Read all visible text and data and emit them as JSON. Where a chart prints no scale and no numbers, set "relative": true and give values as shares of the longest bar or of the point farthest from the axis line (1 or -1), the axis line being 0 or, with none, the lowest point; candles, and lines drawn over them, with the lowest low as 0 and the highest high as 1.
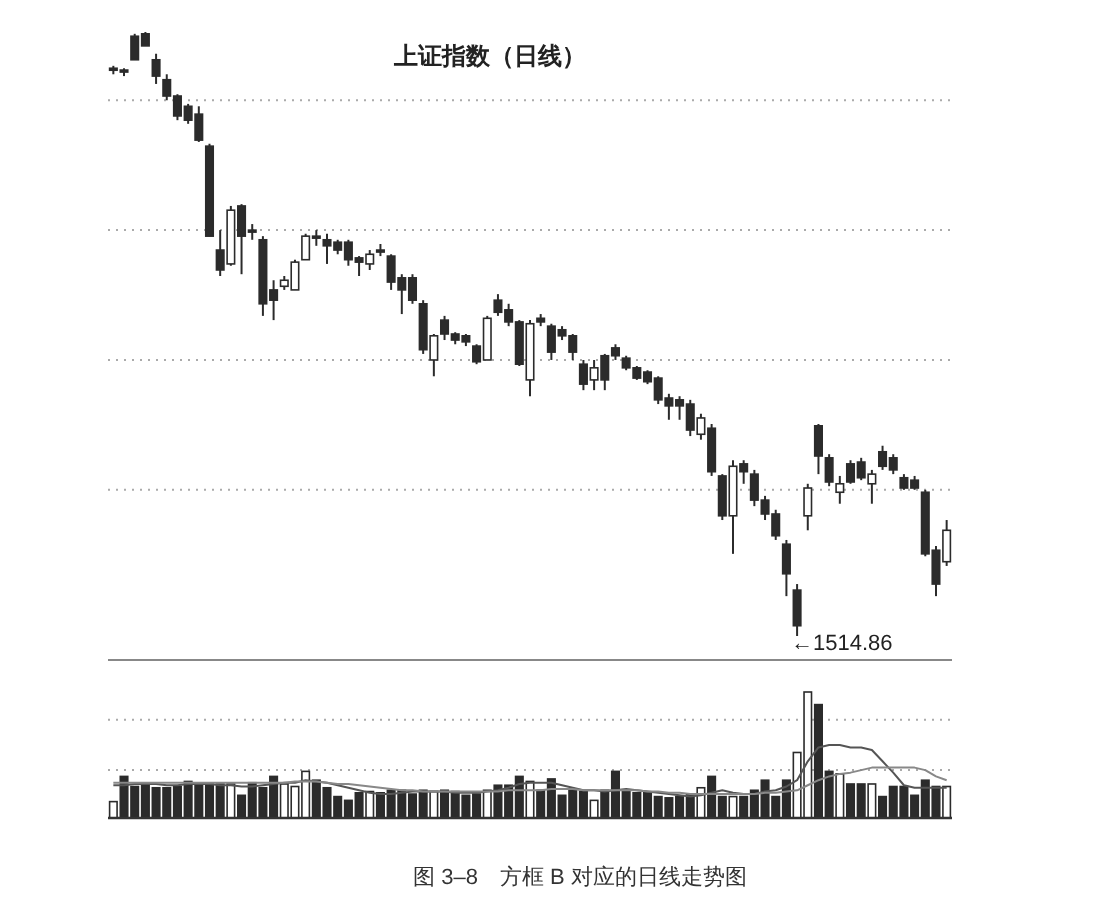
{
  "chart_data": [
    {
      "type": "candlestick",
      "title": "上证指数（日线）",
      "relative": true,
      "categories": [
        null,
        null,
        null,
        null,
        null,
        null,
        null,
        null,
        null,
        null,
        null,
        null,
        null,
        null,
        null,
        null,
        null,
        null,
        null,
        null,
        null,
        null,
        null,
        null,
        null,
        null,
        null,
        null,
        null,
        null,
        null,
        null,
        null,
        null,
        null,
        null,
        null,
        null,
        null,
        null,
        null,
        null,
        null,
        null,
        null,
        null,
        null,
        null,
        null,
        null,
        null,
        null,
        null,
        null,
        null,
        null,
        null,
        null,
        null,
        null,
        null,
        null,
        null,
        null,
        null,
        null,
        null,
        null,
        null,
        null,
        null,
        null,
        null,
        null,
        null,
        null,
        null,
        null,
        null
      ],
      "ohlc": [
        [
          0.94,
          0.944,
          0.93,
          0.937
        ],
        [
          0.937,
          0.94,
          0.927,
          0.934
        ],
        [
          0.993,
          0.997,
          0.954,
          0.954
        ],
        [
          0.997,
          1,
          0.977,
          0.977
        ],
        [
          0.954,
          0.964,
          0.914,
          0.927
        ],
        [
          0.921,
          0.93,
          0.887,
          0.894
        ],
        [
          0.894,
          0.897,
          0.854,
          0.861
        ],
        [
          0.877,
          0.881,
          0.848,
          0.854
        ],
        [
          0.864,
          0.877,
          0.818,
          0.821
        ],
        [
          0.811,
          0.815,
          0.662,
          0.662
        ],
        [
          0.639,
          0.672,
          0.596,
          0.606
        ],
        [
          0.616,
          0.712,
          0.613,
          0.705
        ],
        [
          0.712,
          0.715,
          0.599,
          0.662
        ],
        [
          0.672,
          0.682,
          0.656,
          0.669
        ],
        [
          0.656,
          0.662,
          0.53,
          0.55
        ],
        [
          0.573,
          0.589,
          0.523,
          0.556
        ],
        [
          0.579,
          0.596,
          0.573,
          0.589
        ],
        [
          0.573,
          0.623,
          0.573,
          0.619
        ],
        [
          0.623,
          0.666,
          0.623,
          0.662
        ],
        [
          0.662,
          0.672,
          0.646,
          0.659
        ],
        [
          0.656,
          0.666,
          0.616,
          0.646
        ],
        [
          0.652,
          0.656,
          0.632,
          0.639
        ],
        [
          0.652,
          0.656,
          0.613,
          0.623
        ],
        [
          0.626,
          0.629,
          0.596,
          0.619
        ],
        [
          0.616,
          0.639,
          0.606,
          0.632
        ],
        [
          0.639,
          0.649,
          0.629,
          0.636
        ],
        [
          0.629,
          0.632,
          0.573,
          0.586
        ],
        [
          0.593,
          0.599,
          0.533,
          0.573
        ],
        [
          0.593,
          0.599,
          0.55,
          0.556
        ],
        [
          0.55,
          0.556,
          0.467,
          0.474
        ],
        [
          0.457,
          0.5,
          0.43,
          0.497
        ],
        [
          0.523,
          0.53,
          0.49,
          0.5
        ],
        [
          0.5,
          0.503,
          0.483,
          0.49
        ],
        [
          0.497,
          0.5,
          0.48,
          0.487
        ],
        [
          0.48,
          0.483,
          0.45,
          0.454
        ],
        [
          0.457,
          0.53,
          0.457,
          0.526
        ],
        [
          0.556,
          0.566,
          0.53,
          0.536
        ],
        [
          0.54,
          0.55,
          0.513,
          0.52
        ],
        [
          0.52,
          0.523,
          0.447,
          0.45
        ],
        [
          0.424,
          0.523,
          0.397,
          0.517
        ],
        [
          0.526,
          0.533,
          0.513,
          0.52
        ],
        [
          0.513,
          0.517,
          0.457,
          0.47
        ],
        [
          0.507,
          0.513,
          0.49,
          0.497
        ],
        [
          0.497,
          0.5,
          0.457,
          0.47
        ],
        [
          0.45,
          0.457,
          0.407,
          0.417
        ],
        [
          0.424,
          0.457,
          0.407,
          0.444
        ],
        [
          0.464,
          0.467,
          0.407,
          0.424
        ],
        [
          0.477,
          0.483,
          0.457,
          0.464
        ],
        [
          0.46,
          0.464,
          0.44,
          0.444
        ],
        [
          0.444,
          0.447,
          0.424,
          0.427
        ],
        [
          0.437,
          0.44,
          0.417,
          0.421
        ],
        [
          0.427,
          0.43,
          0.384,
          0.391
        ],
        [
          0.394,
          0.401,
          0.358,
          0.381
        ],
        [
          0.391,
          0.397,
          0.358,
          0.381
        ],
        [
          0.384,
          0.391,
          0.331,
          0.341
        ],
        [
          0.334,
          0.368,
          0.325,
          0.361
        ],
        [
          0.344,
          0.351,
          0.265,
          0.272
        ],
        [
          0.265,
          0.268,
          0.192,
          0.199
        ],
        [
          0.199,
          0.291,
          0.136,
          0.281
        ],
        [
          0.285,
          0.291,
          0.252,
          0.272
        ],
        [
          0.268,
          0.275,
          0.215,
          0.225
        ],
        [
          0.225,
          0.232,
          0.192,
          0.202
        ],
        [
          0.202,
          0.209,
          0.159,
          0.166
        ],
        [
          0.152,
          0.159,
          0.066,
          0.103
        ],
        [
          0.076,
          0.086,
          0,
          0.017
        ],
        [
          0.199,
          0.252,
          0.175,
          0.245
        ],
        [
          0.348,
          0.351,
          0.268,
          0.298
        ],
        [
          0.295,
          0.301,
          0.248,
          0.255
        ],
        [
          0.238,
          0.265,
          0.219,
          0.252
        ],
        [
          0.285,
          0.291,
          0.252,
          0.255
        ],
        [
          0.288,
          0.295,
          0.258,
          0.262
        ],
        [
          0.252,
          0.275,
          0.219,
          0.268
        ],
        [
          0.305,
          0.315,
          0.275,
          0.281
        ],
        [
          0.295,
          0.301,
          0.268,
          0.275
        ],
        [
          0.262,
          0.268,
          0.242,
          0.245
        ],
        [
          0.258,
          0.265,
          0.242,
          0.245
        ],
        [
          0.238,
          0.242,
          0.132,
          0.136
        ],
        [
          0.142,
          0.149,
          0.066,
          0.086
        ],
        [
          0.123,
          0.192,
          0.116,
          0.175
        ]
      ],
      "ref_lines": [
        {
          "axis": "y",
          "value": 0.887,
          "line_style": "dotted",
          "color": "#aaaaaa"
        },
        {
          "axis": "y",
          "value": 0.672,
          "line_style": "dotted",
          "color": "#aaaaaa"
        },
        {
          "axis": "y",
          "value": 0.457,
          "line_style": "dotted",
          "color": "#aaaaaa"
        },
        {
          "axis": "y",
          "value": 0.242,
          "line_style": "dotted",
          "color": "#aaaaaa"
        }
      ],
      "annotations": [
        "←1514.86"
      ]
    },
    {
      "type": "bar",
      "relative": true,
      "categories": [
        null,
        null,
        null,
        null,
        null,
        null,
        null,
        null,
        null,
        null,
        null,
        null,
        null,
        null,
        null,
        null,
        null,
        null,
        null,
        null,
        null,
        null,
        null,
        null,
        null,
        null,
        null,
        null,
        null,
        null,
        null,
        null,
        null,
        null,
        null,
        null,
        null,
        null,
        null,
        null,
        null,
        null,
        null,
        null,
        null,
        null,
        null,
        null,
        null,
        null,
        null,
        null,
        null,
        null,
        null,
        null,
        null,
        null,
        null,
        null,
        null,
        null,
        null,
        null,
        null,
        null,
        null,
        null,
        null,
        null,
        null,
        null,
        null,
        null,
        null,
        null,
        null,
        null,
        null
      ],
      "series": [
        {
          "type": "bar",
          "values": [
            0.13,
            0.33,
            0.25,
            0.27,
            0.24,
            0.24,
            0.25,
            0.29,
            0.27,
            0.27,
            0.27,
            0.27,
            0.18,
            0.28,
            0.24,
            0.33,
            0.27,
            0.25,
            0.37,
            0.3,
            0.24,
            0.17,
            0.14,
            0.2,
            0.21,
            0.2,
            0.22,
            0.22,
            0.19,
            0.22,
            0.21,
            0.22,
            0.21,
            0.18,
            0.19,
            0.22,
            0.26,
            0.26,
            0.33,
            0.29,
            0.22,
            0.31,
            0.18,
            0.22,
            0.21,
            0.14,
            0.22,
            0.37,
            0.21,
            0.2,
            0.2,
            0.17,
            0.16,
            0.17,
            0.19,
            0.24,
            0.33,
            0.17,
            0.17,
            0.17,
            0.22,
            0.3,
            0.17,
            0.3,
            0.52,
            1.0,
            0.9,
            0.37,
            0.35,
            0.27,
            0.27,
            0.27,
            0.17,
            0.25,
            0.25,
            0.18,
            0.3,
            0.25,
            0.25
          ],
          "colors": [
            "#ffffff",
            "#2b2b2b",
            "#2b2b2b",
            "#2b2b2b",
            "#2b2b2b",
            "#2b2b2b",
            "#2b2b2b",
            "#2b2b2b",
            "#2b2b2b",
            "#2b2b2b",
            "#2b2b2b",
            "#ffffff",
            "#2b2b2b",
            "#2b2b2b",
            "#2b2b2b",
            "#2b2b2b",
            "#ffffff",
            "#ffffff",
            "#ffffff",
            "#2b2b2b",
            "#2b2b2b",
            "#2b2b2b",
            "#2b2b2b",
            "#2b2b2b",
            "#ffffff",
            "#2b2b2b",
            "#2b2b2b",
            "#2b2b2b",
            "#2b2b2b",
            "#2b2b2b",
            "#ffffff",
            "#2b2b2b",
            "#2b2b2b",
            "#2b2b2b",
            "#2b2b2b",
            "#ffffff",
            "#2b2b2b",
            "#2b2b2b",
            "#2b2b2b",
            "#ffffff",
            "#2b2b2b",
            "#2b2b2b",
            "#2b2b2b",
            "#2b2b2b",
            "#2b2b2b",
            "#ffffff",
            "#2b2b2b",
            "#2b2b2b",
            "#2b2b2b",
            "#2b2b2b",
            "#2b2b2b",
            "#2b2b2b",
            "#2b2b2b",
            "#2b2b2b",
            "#2b2b2b",
            "#ffffff",
            "#2b2b2b",
            "#2b2b2b",
            "#ffffff",
            "#2b2b2b",
            "#2b2b2b",
            "#2b2b2b",
            "#2b2b2b",
            "#2b2b2b",
            "#ffffff",
            "#ffffff",
            "#2b2b2b",
            "#2b2b2b",
            "#ffffff",
            "#2b2b2b",
            "#2b2b2b",
            "#ffffff",
            "#2b2b2b",
            "#2b2b2b",
            "#2b2b2b",
            "#2b2b2b",
            "#2b2b2b",
            "#2b2b2b",
            "#ffffff"
          ]
        },
        {
          "type": "line",
          "color": "#555555",
          "values": [
            0.26,
            0.26,
            0.27,
            0.27,
            0.27,
            0.26,
            0.26,
            0.27,
            0.27,
            0.27,
            0.26,
            0.26,
            0.25,
            0.25,
            0.26,
            0.27,
            0.28,
            0.28,
            0.3,
            0.29,
            0.28,
            0.26,
            0.24,
            0.22,
            0.2,
            0.19,
            0.19,
            0.2,
            0.21,
            0.21,
            0.21,
            0.21,
            0.2,
            0.2,
            0.2,
            0.21,
            0.22,
            0.24,
            0.27,
            0.28,
            0.28,
            0.28,
            0.26,
            0.24,
            0.22,
            0.22,
            0.21,
            0.22,
            0.23,
            0.22,
            0.21,
            0.2,
            0.19,
            0.18,
            0.17,
            0.18,
            0.2,
            0.22,
            0.2,
            0.19,
            0.19,
            0.21,
            0.22,
            0.25,
            0.3,
            0.45,
            0.56,
            0.58,
            0.58,
            0.56,
            0.56,
            0.54,
            0.45,
            0.36,
            0.26,
            0.24,
            0.24,
            0.24,
            0.24
          ]
        },
        {
          "type": "line",
          "color": "#888888",
          "values": [
            0.28,
            0.28,
            0.28,
            0.28,
            0.28,
            0.28,
            0.28,
            0.28,
            0.28,
            0.28,
            0.28,
            0.28,
            0.28,
            0.28,
            0.28,
            0.28,
            0.28,
            0.29,
            0.29,
            0.29,
            0.28,
            0.27,
            0.27,
            0.26,
            0.25,
            0.24,
            0.23,
            0.22,
            0.22,
            0.21,
            0.21,
            0.21,
            0.21,
            0.21,
            0.21,
            0.21,
            0.21,
            0.22,
            0.22,
            0.22,
            0.22,
            0.23,
            0.23,
            0.23,
            0.22,
            0.22,
            0.22,
            0.22,
            0.22,
            0.22,
            0.21,
            0.21,
            0.2,
            0.2,
            0.19,
            0.19,
            0.19,
            0.19,
            0.19,
            0.19,
            0.19,
            0.2,
            0.2,
            0.21,
            0.22,
            0.26,
            0.3,
            0.33,
            0.35,
            0.36,
            0.38,
            0.4,
            0.4,
            0.4,
            0.4,
            0.4,
            0.38,
            0.33,
            0.3
          ]
        }
      ],
      "ref_lines": [
        {
          "axis": "y",
          "value": 0.78,
          "line_style": "dotted",
          "color": "#aaaaaa"
        },
        {
          "axis": "y",
          "value": 0.38,
          "line_style": "dotted",
          "color": "#aaaaaa"
        }
      ],
      "annotations": [
        "图 3–8　方框 B 对应的日线走势图"
      ]
    }
  ]
}
